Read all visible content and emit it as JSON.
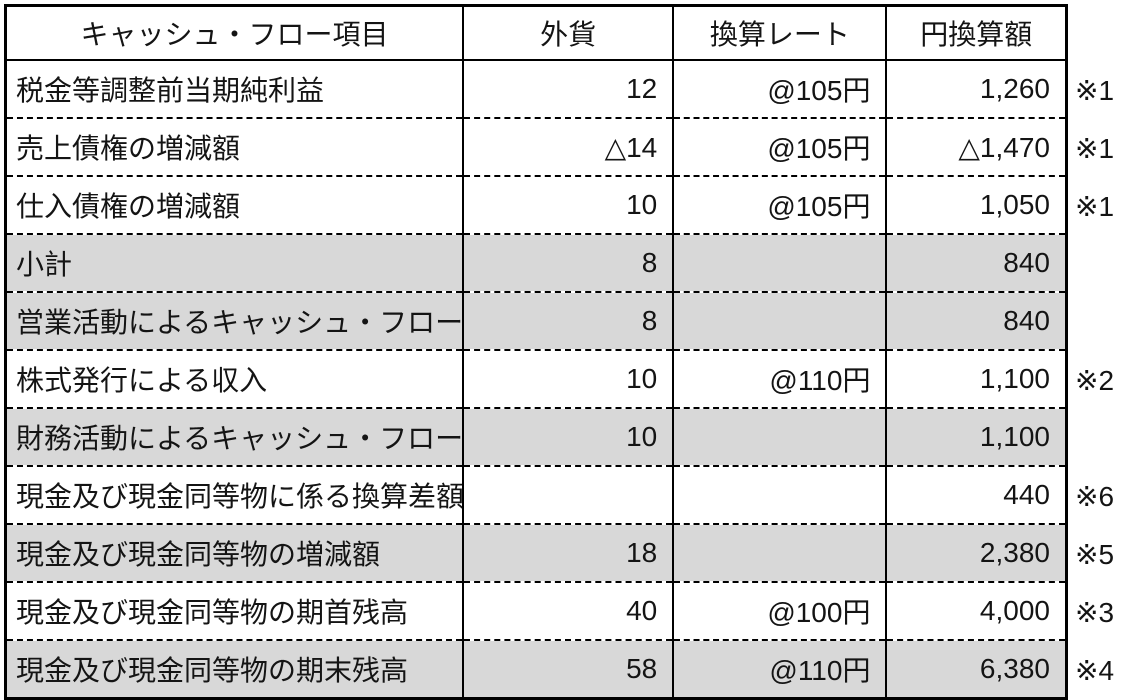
{
  "table": {
    "headers": [
      "キャッシュ・フロー項目",
      "外貨",
      "換算レート",
      "円換算額"
    ],
    "rows": [
      {
        "item": "税金等調整前当期純利益",
        "foreign": "12",
        "rate": "@105円",
        "yen": "1,260",
        "note": "※1",
        "shaded": false
      },
      {
        "item": "売上債権の増減額",
        "foreign": "△14",
        "rate": "@105円",
        "yen": "△1,470",
        "note": "※1",
        "shaded": false
      },
      {
        "item": "仕入債権の増減額",
        "foreign": "10",
        "rate": "@105円",
        "yen": "1,050",
        "note": "※1",
        "shaded": false
      },
      {
        "item": "小計",
        "foreign": "8",
        "rate": "",
        "yen": "840",
        "note": "",
        "shaded": true
      },
      {
        "item": "営業活動によるキャッシュ・フロー",
        "foreign": "8",
        "rate": "",
        "yen": "840",
        "note": "",
        "shaded": true
      },
      {
        "item": "株式発行による収入",
        "foreign": "10",
        "rate": "@110円",
        "yen": "1,100",
        "note": "※2",
        "shaded": false
      },
      {
        "item": "財務活動によるキャッシュ・フロー",
        "foreign": "10",
        "rate": "",
        "yen": "1,100",
        "note": "",
        "shaded": true
      },
      {
        "item": "現金及び現金同等物に係る換算差額",
        "foreign": "",
        "rate": "",
        "yen": "440",
        "note": "※6",
        "shaded": false
      },
      {
        "item": "現金及び現金同等物の増減額",
        "foreign": "18",
        "rate": "",
        "yen": "2,380",
        "note": "※5",
        "shaded": true
      },
      {
        "item": "現金及び現金同等物の期首残高",
        "foreign": "40",
        "rate": "@100円",
        "yen": "4,000",
        "note": "※3",
        "shaded": false
      },
      {
        "item": "現金及び現金同等物の期末残高",
        "foreign": "58",
        "rate": "@110円",
        "yen": "6,380",
        "note": "※4",
        "shaded": true
      }
    ]
  },
  "colors": {
    "shaded_row": "#d8d8d8",
    "border": "#000000",
    "background": "#ffffff"
  }
}
